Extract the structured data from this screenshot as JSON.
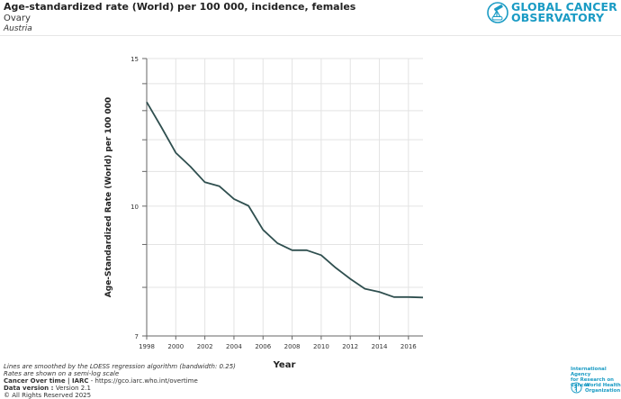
{
  "header": {
    "title": "Age-standardized rate (World) per 100 000, incidence, females",
    "subtitle": "Ovary",
    "region": "Austria"
  },
  "logo": {
    "line1": "GLOBAL CANCER",
    "line2": "OBSERVATORY",
    "icon": "telescope-icon"
  },
  "chart_data": {
    "type": "line",
    "title": "Age-standardized rate (World) per 100 000, incidence, females",
    "subtitle": "Ovary",
    "xlabel": "Year",
    "ylabel": "Age-Standardized Rate (World) per 100 000",
    "yscale": "log",
    "ylim": [
      7,
      15
    ],
    "xlim": [
      1998,
      2017
    ],
    "yticks_labeled": [
      7,
      10,
      15
    ],
    "ygrid": [
      7,
      8,
      9,
      10,
      11,
      12,
      13,
      14,
      15
    ],
    "xticks": [
      1998,
      2000,
      2002,
      2004,
      2006,
      2008,
      2010,
      2012,
      2014,
      2016
    ],
    "grid": true,
    "legend": "none",
    "series": [
      {
        "name": "Austria",
        "color": "#2f4f4f",
        "x": [
          1998,
          1999,
          2000,
          2001,
          2002,
          2003,
          2004,
          2005,
          2006,
          2007,
          2008,
          2009,
          2010,
          2011,
          2012,
          2013,
          2014,
          2015,
          2016,
          2017
        ],
        "values": [
          13.31,
          12.43,
          11.58,
          11.15,
          10.68,
          10.56,
          10.2,
          10.01,
          9.37,
          9.03,
          8.86,
          8.86,
          8.74,
          8.44,
          8.19,
          7.97,
          7.9,
          7.79,
          7.79,
          7.78
        ]
      }
    ]
  },
  "footer": {
    "note1": "Lines are smoothed by the LOESS regression algorithm (bandwidth: 0.25)",
    "note2": "Rates are shown on a semi-log scale",
    "source_bold": "Cancer Over time | IARC",
    "source_rest": " - https://gco.iarc.who.int/overtime",
    "version_bold": "Data version : ",
    "version_value": "Version 2.1",
    "copyright": "© All Rights Reserved 2025"
  },
  "partners": {
    "iarc_line1": "International Agency",
    "iarc_line2": "for Research on Cancer",
    "who_line1": "World Health",
    "who_line2": "Organization"
  }
}
